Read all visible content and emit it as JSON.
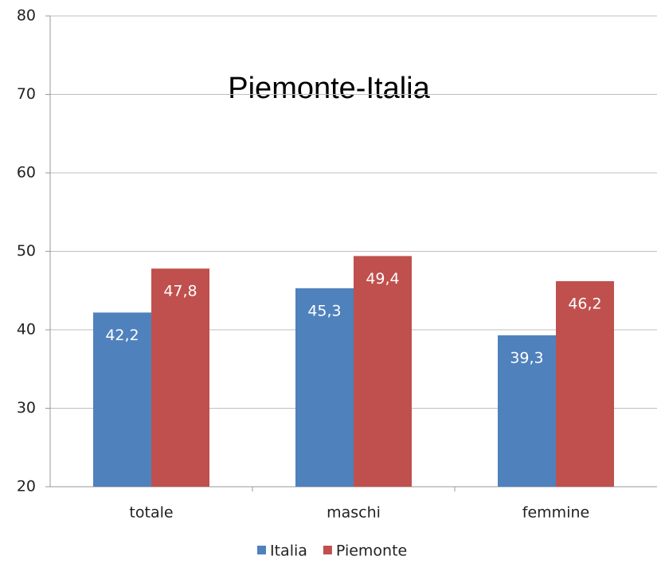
{
  "chart_data": {
    "type": "bar",
    "title": "Piemonte-Italia",
    "categories": [
      "totale",
      "maschi",
      "femmine"
    ],
    "series": [
      {
        "name": "Italia",
        "color": "#4f81bd",
        "values": [
          42.2,
          45.3,
          39.3
        ],
        "value_labels": [
          "42,2",
          "45,3",
          "39,3"
        ]
      },
      {
        "name": "Piemonte",
        "color": "#c0504d",
        "values": [
          47.8,
          49.4,
          46.2
        ],
        "value_labels": [
          "47,8",
          "49,4",
          "46,2"
        ]
      }
    ],
    "ylim": [
      20,
      80
    ],
    "yticks": [
      20,
      30,
      40,
      50,
      60,
      70,
      80
    ],
    "grid": true,
    "legend": "bottom"
  }
}
